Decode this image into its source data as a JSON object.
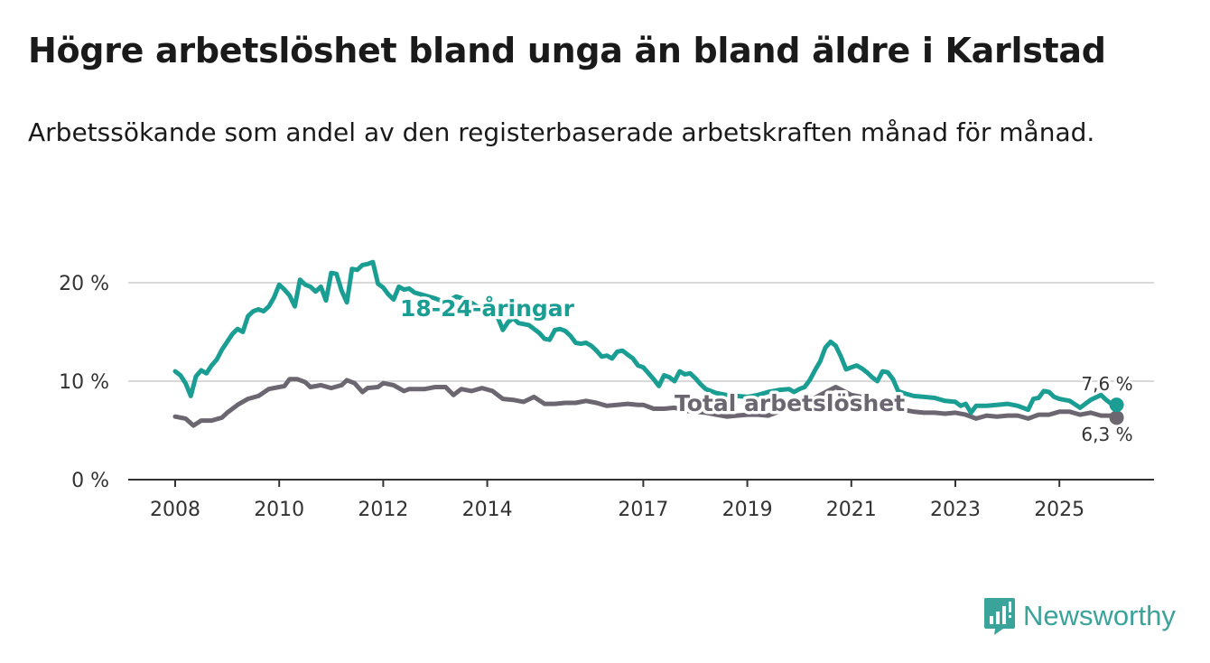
{
  "title": "Högre arbetslöshet bland unga än bland äldre i Karlstad",
  "subtitle": "Arbetssökande som andel av den registerbaserade arbetskraften månad för månad.",
  "brand": {
    "name": "Newsworthy",
    "logo_icon": "bar-chart-icon"
  },
  "colors": {
    "youth": "#1a9e93",
    "total": "#6b6670",
    "grid": "#d9d9d9",
    "axis": "#333333",
    "brand": "#3aa39a"
  },
  "chart_data": {
    "type": "line",
    "title": "Högre arbetslöshet bland unga än bland äldre i Karlstad",
    "xlabel": "",
    "ylabel": "",
    "xlim": [
      2007.9,
      2027.6
    ],
    "ylim": [
      0,
      22
    ],
    "y_ticks": [
      {
        "value": 0,
        "label": "0 %"
      },
      {
        "value": 10,
        "label": "10 %"
      },
      {
        "value": 20,
        "label": "20 %"
      }
    ],
    "x_ticks": [
      {
        "value": 2008.0,
        "label": "2008"
      },
      {
        "value": 2010.0,
        "label": "2010"
      },
      {
        "value": 2012.0,
        "label": "2012"
      },
      {
        "value": 2014.0,
        "label": "2014"
      },
      {
        "value": 2017.0,
        "label": "2017"
      },
      {
        "value": 2019.0,
        "label": "2019"
      },
      {
        "value": 2021.0,
        "label": "2021"
      },
      {
        "value": 2023.0,
        "label": "2023"
      },
      {
        "value": 2025.0,
        "label": "2025"
      }
    ],
    "grid": true,
    "series": [
      {
        "name": "18-24-åringar",
        "color": "#1a9e93",
        "end_label": "7,6 %",
        "points": [
          [
            2008.0,
            11.0
          ],
          [
            2008.1,
            10.6
          ],
          [
            2008.2,
            9.8
          ],
          [
            2008.3,
            8.5
          ],
          [
            2008.4,
            10.5
          ],
          [
            2008.5,
            11.1
          ],
          [
            2008.6,
            10.8
          ],
          [
            2008.7,
            11.6
          ],
          [
            2008.8,
            12.2
          ],
          [
            2008.9,
            13.2
          ],
          [
            2009.0,
            14.0
          ],
          [
            2009.1,
            14.8
          ],
          [
            2009.2,
            15.3
          ],
          [
            2009.3,
            15.0
          ],
          [
            2009.4,
            16.6
          ],
          [
            2009.5,
            17.1
          ],
          [
            2009.6,
            17.3
          ],
          [
            2009.7,
            17.1
          ],
          [
            2009.8,
            17.6
          ],
          [
            2009.9,
            18.5
          ],
          [
            2010.0,
            19.8
          ],
          [
            2010.1,
            19.3
          ],
          [
            2010.2,
            18.7
          ],
          [
            2010.3,
            17.6
          ],
          [
            2010.4,
            20.3
          ],
          [
            2010.5,
            19.8
          ],
          [
            2010.6,
            19.6
          ],
          [
            2010.7,
            19.1
          ],
          [
            2010.8,
            19.6
          ],
          [
            2010.9,
            18.2
          ],
          [
            2011.0,
            21.0
          ],
          [
            2011.1,
            20.9
          ],
          [
            2011.2,
            19.2
          ],
          [
            2011.3,
            18.0
          ],
          [
            2011.4,
            21.4
          ],
          [
            2011.5,
            21.3
          ],
          [
            2011.6,
            21.8
          ],
          [
            2011.7,
            21.9
          ],
          [
            2011.8,
            22.1
          ],
          [
            2011.9,
            19.9
          ],
          [
            2012.0,
            19.5
          ],
          [
            2012.1,
            18.8
          ],
          [
            2012.2,
            18.3
          ],
          [
            2012.3,
            19.6
          ],
          [
            2012.4,
            19.3
          ],
          [
            2012.5,
            19.4
          ],
          [
            2012.6,
            19.0
          ],
          [
            2012.8,
            18.7
          ],
          [
            2013.0,
            18.4
          ],
          [
            2013.2,
            18.0
          ],
          [
            2013.4,
            18.6
          ],
          [
            2013.6,
            18.3
          ],
          [
            2013.8,
            17.6
          ],
          [
            2014.0,
            17.2
          ],
          [
            2014.2,
            16.5
          ],
          [
            2014.3,
            15.2
          ],
          [
            2014.4,
            16.0
          ],
          [
            2014.5,
            16.4
          ],
          [
            2014.6,
            15.9
          ],
          [
            2014.8,
            15.7
          ],
          [
            2015.0,
            14.9
          ],
          [
            2015.1,
            14.3
          ],
          [
            2015.2,
            14.2
          ],
          [
            2015.3,
            15.2
          ],
          [
            2015.4,
            15.3
          ],
          [
            2015.5,
            15.1
          ],
          [
            2015.6,
            14.6
          ],
          [
            2015.7,
            13.9
          ],
          [
            2015.8,
            13.8
          ],
          [
            2015.9,
            13.9
          ],
          [
            2016.0,
            13.6
          ],
          [
            2016.1,
            13.1
          ],
          [
            2016.2,
            12.5
          ],
          [
            2016.3,
            12.6
          ],
          [
            2016.4,
            12.3
          ],
          [
            2016.5,
            13.0
          ],
          [
            2016.6,
            13.1
          ],
          [
            2016.7,
            12.7
          ],
          [
            2016.8,
            12.3
          ],
          [
            2016.9,
            11.6
          ],
          [
            2017.0,
            11.4
          ],
          [
            2017.1,
            10.8
          ],
          [
            2017.2,
            10.2
          ],
          [
            2017.3,
            9.5
          ],
          [
            2017.4,
            10.6
          ],
          [
            2017.5,
            10.4
          ],
          [
            2017.6,
            10.0
          ],
          [
            2017.7,
            11.0
          ],
          [
            2017.8,
            10.7
          ],
          [
            2017.9,
            10.8
          ],
          [
            2018.0,
            10.3
          ],
          [
            2018.1,
            9.7
          ],
          [
            2018.2,
            9.2
          ],
          [
            2018.4,
            8.8
          ],
          [
            2018.6,
            8.6
          ],
          [
            2018.8,
            8.5
          ],
          [
            2019.0,
            8.4
          ],
          [
            2019.2,
            8.6
          ],
          [
            2019.4,
            8.9
          ],
          [
            2019.6,
            9.1
          ],
          [
            2019.8,
            9.2
          ],
          [
            2019.9,
            8.9
          ],
          [
            2020.0,
            9.2
          ],
          [
            2020.1,
            9.4
          ],
          [
            2020.2,
            10.1
          ],
          [
            2020.3,
            11.1
          ],
          [
            2020.4,
            12.0
          ],
          [
            2020.5,
            13.4
          ],
          [
            2020.6,
            14.0
          ],
          [
            2020.7,
            13.6
          ],
          [
            2020.8,
            12.5
          ],
          [
            2020.9,
            11.2
          ],
          [
            2021.0,
            11.4
          ],
          [
            2021.1,
            11.6
          ],
          [
            2021.2,
            11.3
          ],
          [
            2021.3,
            10.9
          ],
          [
            2021.4,
            10.4
          ],
          [
            2021.5,
            10.0
          ],
          [
            2021.6,
            11.0
          ],
          [
            2021.7,
            10.9
          ],
          [
            2021.8,
            10.2
          ],
          [
            2021.9,
            9.0
          ],
          [
            2022.0,
            8.8
          ],
          [
            2022.2,
            8.5
          ],
          [
            2022.4,
            8.4
          ],
          [
            2022.6,
            8.3
          ],
          [
            2022.8,
            8.0
          ],
          [
            2023.0,
            7.9
          ],
          [
            2023.1,
            7.5
          ],
          [
            2023.2,
            7.7
          ],
          [
            2023.3,
            6.8
          ],
          [
            2023.4,
            7.5
          ],
          [
            2023.6,
            7.5
          ],
          [
            2023.8,
            7.6
          ],
          [
            2024.0,
            7.7
          ],
          [
            2024.1,
            7.6
          ],
          [
            2024.2,
            7.5
          ],
          [
            2024.4,
            7.1
          ],
          [
            2024.5,
            8.2
          ],
          [
            2024.6,
            8.3
          ],
          [
            2024.7,
            9.0
          ],
          [
            2024.8,
            8.9
          ],
          [
            2024.9,
            8.4
          ],
          [
            2025.0,
            8.2
          ],
          [
            2025.2,
            8.0
          ],
          [
            2025.4,
            7.3
          ],
          [
            2025.6,
            8.1
          ],
          [
            2025.8,
            8.6
          ],
          [
            2025.9,
            8.1
          ],
          [
            2026.0,
            7.7
          ],
          [
            2026.1,
            7.6
          ]
        ]
      },
      {
        "name": "Total arbetslöshet",
        "color": "#6b6670",
        "end_label": "6,3 %",
        "points": [
          [
            2008.0,
            6.4
          ],
          [
            2008.2,
            6.2
          ],
          [
            2008.35,
            5.5
          ],
          [
            2008.5,
            6.0
          ],
          [
            2008.7,
            6.0
          ],
          [
            2008.9,
            6.3
          ],
          [
            2009.0,
            6.8
          ],
          [
            2009.2,
            7.6
          ],
          [
            2009.4,
            8.2
          ],
          [
            2009.6,
            8.5
          ],
          [
            2009.8,
            9.2
          ],
          [
            2010.0,
            9.4
          ],
          [
            2010.1,
            9.5
          ],
          [
            2010.2,
            10.2
          ],
          [
            2010.35,
            10.2
          ],
          [
            2010.5,
            9.9
          ],
          [
            2010.6,
            9.4
          ],
          [
            2010.8,
            9.6
          ],
          [
            2011.0,
            9.3
          ],
          [
            2011.2,
            9.6
          ],
          [
            2011.3,
            10.1
          ],
          [
            2011.45,
            9.8
          ],
          [
            2011.6,
            8.9
          ],
          [
            2011.7,
            9.3
          ],
          [
            2011.9,
            9.4
          ],
          [
            2012.0,
            9.8
          ],
          [
            2012.2,
            9.6
          ],
          [
            2012.4,
            9.0
          ],
          [
            2012.5,
            9.2
          ],
          [
            2012.8,
            9.2
          ],
          [
            2013.0,
            9.4
          ],
          [
            2013.2,
            9.4
          ],
          [
            2013.35,
            8.6
          ],
          [
            2013.5,
            9.2
          ],
          [
            2013.7,
            9.0
          ],
          [
            2013.9,
            9.3
          ],
          [
            2014.1,
            9.0
          ],
          [
            2014.3,
            8.2
          ],
          [
            2014.5,
            8.1
          ],
          [
            2014.7,
            7.9
          ],
          [
            2014.9,
            8.4
          ],
          [
            2015.1,
            7.7
          ],
          [
            2015.3,
            7.7
          ],
          [
            2015.5,
            7.8
          ],
          [
            2015.7,
            7.8
          ],
          [
            2015.9,
            8.0
          ],
          [
            2016.1,
            7.8
          ],
          [
            2016.3,
            7.5
          ],
          [
            2016.5,
            7.6
          ],
          [
            2016.7,
            7.7
          ],
          [
            2016.9,
            7.6
          ],
          [
            2017.0,
            7.6
          ],
          [
            2017.2,
            7.2
          ],
          [
            2017.4,
            7.2
          ],
          [
            2017.6,
            7.3
          ],
          [
            2017.8,
            7.0
          ],
          [
            2018.0,
            6.9
          ],
          [
            2018.2,
            6.8
          ],
          [
            2018.4,
            6.6
          ],
          [
            2018.6,
            6.4
          ],
          [
            2018.8,
            6.5
          ],
          [
            2019.0,
            6.6
          ],
          [
            2019.2,
            6.6
          ],
          [
            2019.4,
            6.5
          ],
          [
            2019.6,
            6.9
          ],
          [
            2019.8,
            7.3
          ],
          [
            2020.0,
            7.6
          ],
          [
            2020.2,
            8.0
          ],
          [
            2020.4,
            8.6
          ],
          [
            2020.55,
            9.0
          ],
          [
            2020.7,
            9.4
          ],
          [
            2020.85,
            9.0
          ],
          [
            2021.0,
            8.6
          ],
          [
            2021.2,
            8.4
          ],
          [
            2021.4,
            8.0
          ],
          [
            2021.6,
            7.8
          ],
          [
            2021.8,
            7.5
          ],
          [
            2022.0,
            7.1
          ],
          [
            2022.2,
            6.9
          ],
          [
            2022.4,
            6.8
          ],
          [
            2022.6,
            6.8
          ],
          [
            2022.8,
            6.7
          ],
          [
            2023.0,
            6.8
          ],
          [
            2023.2,
            6.6
          ],
          [
            2023.4,
            6.2
          ],
          [
            2023.6,
            6.5
          ],
          [
            2023.8,
            6.4
          ],
          [
            2024.0,
            6.5
          ],
          [
            2024.2,
            6.5
          ],
          [
            2024.4,
            6.2
          ],
          [
            2024.6,
            6.6
          ],
          [
            2024.8,
            6.6
          ],
          [
            2025.0,
            6.9
          ],
          [
            2025.2,
            6.9
          ],
          [
            2025.4,
            6.6
          ],
          [
            2025.6,
            6.8
          ],
          [
            2025.8,
            6.5
          ],
          [
            2026.0,
            6.5
          ],
          [
            2026.1,
            6.3
          ]
        ]
      }
    ]
  }
}
